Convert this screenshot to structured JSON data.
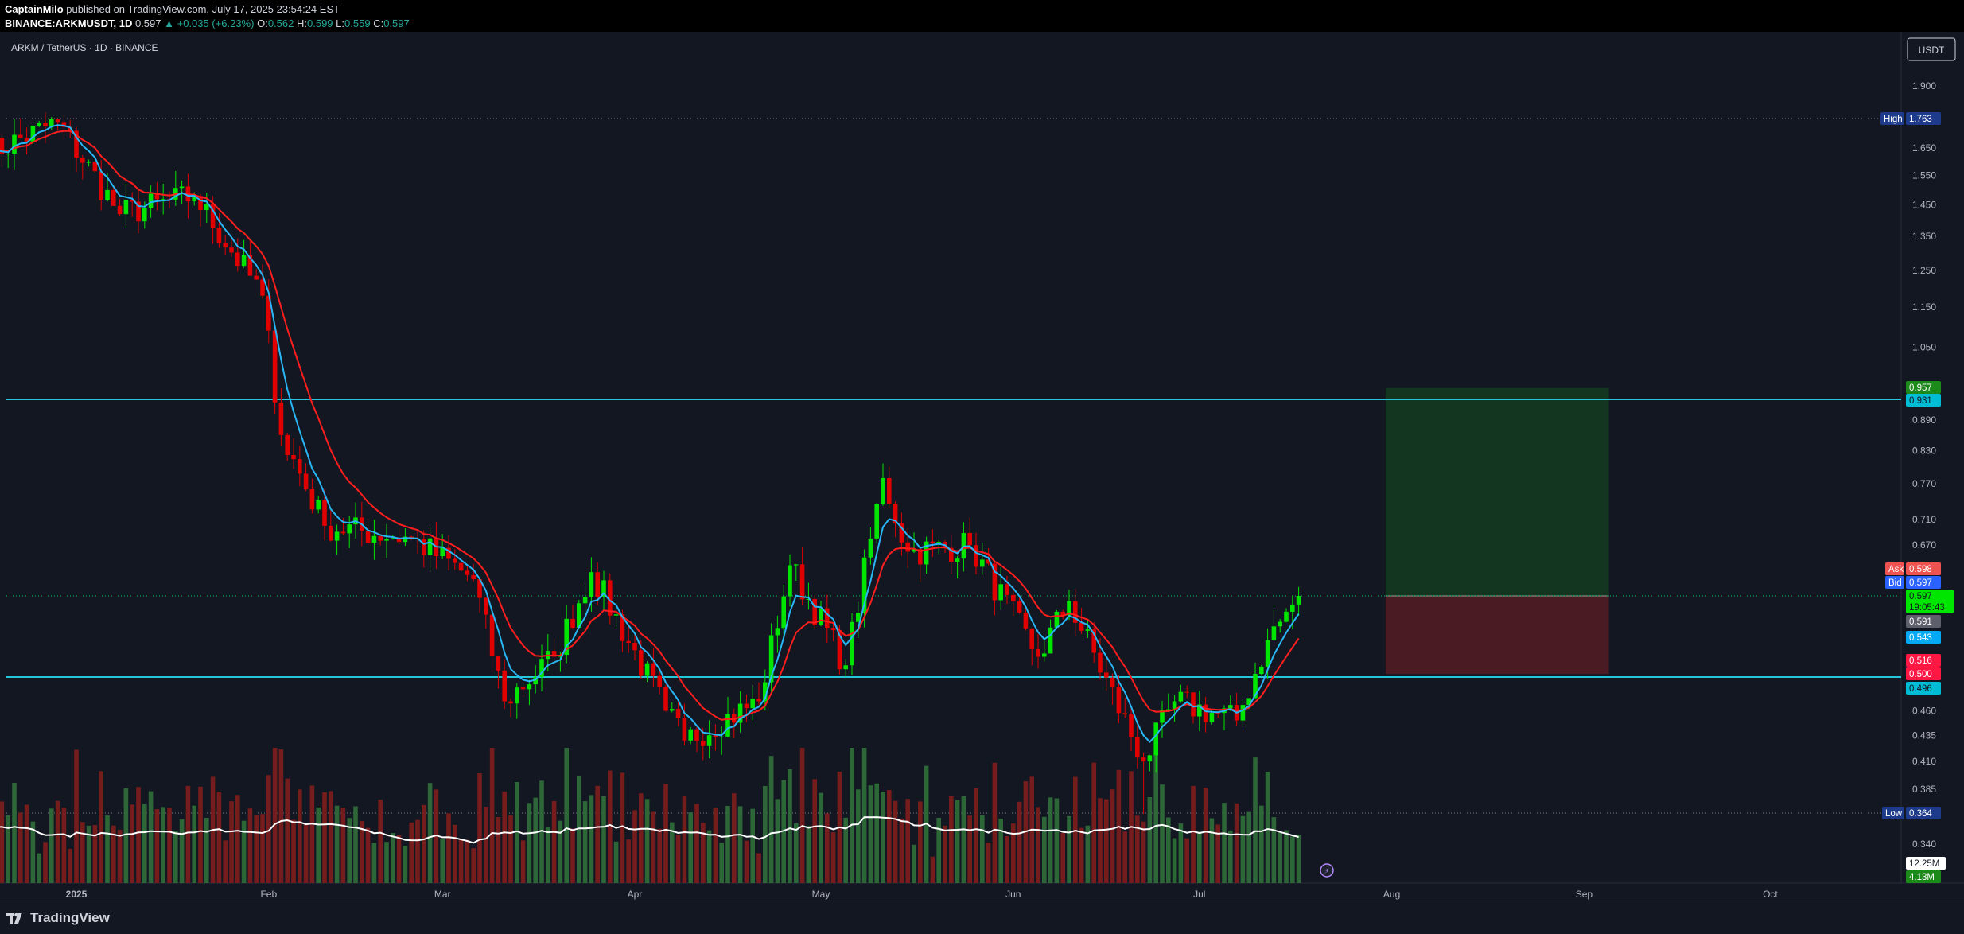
{
  "header": {
    "author": "CaptainMilo",
    "published": "published on TradingView.com, July 17, 2025 23:54:24 EST",
    "symbol": "BINANCE:ARKMUSDT, 1D",
    "last": "0.597",
    "change": "▲ +0.035 (+6.23%)",
    "o_label": "O:",
    "o": "0.562",
    "h_label": "H:",
    "h": "0.599",
    "l_label": "L:",
    "l": "0.559",
    "c_label": "C:",
    "c": "0.597"
  },
  "pair_title": "ARKM / TetherUS · 1D · BINANCE",
  "currency_button": "USDT",
  "footer_logo": "TradingView",
  "colors": {
    "background": "#131722",
    "up": "#00e600",
    "down": "#e00000",
    "ema_fast": "#29b6f6",
    "ema_slow": "#ff1e1e",
    "level_line": "#26c6da",
    "profit_zone": "#12361f",
    "loss_zone": "#4a1b22"
  },
  "y_axis_labels": [
    "1.900",
    "1.650",
    "1.550",
    "1.450",
    "1.350",
    "1.250",
    "1.150",
    "1.050",
    "0.890",
    "0.830",
    "0.770",
    "0.710",
    "0.670",
    "0.460",
    "0.435",
    "0.410",
    "0.385",
    "0.340"
  ],
  "x_axis_labels": [
    "2025",
    "Feb",
    "Mar",
    "Apr",
    "May",
    "Jun",
    "Jul",
    "Aug",
    "Sep",
    "Oct"
  ],
  "price_tags": {
    "high_label": "High",
    "high": "1.763",
    "low_label": "Low",
    "low": "0.364",
    "target": "0.957",
    "resistance": "0.931",
    "ask_label": "Ask",
    "ask": "0.598",
    "bid_label": "Bid",
    "bid": "0.597",
    "last": "0.597",
    "countdown": "19:05:43",
    "ema_fast_val": "0.591",
    "ema_blue": "0.543",
    "ema_red": "0.516",
    "stop": "0.500",
    "support": "0.496",
    "vol_ma": "12.25M",
    "volume": "4.13M"
  },
  "chart_data": {
    "type": "candlestick",
    "symbol": "ARKM / TetherUS",
    "interval": "1D",
    "exchange": "BINANCE",
    "y_scale": "log",
    "ylim": [
      0.33,
      2.0
    ],
    "x_range": [
      "2024-12-17",
      "2025-10-20"
    ],
    "key_points": [
      {
        "date": "2024-12-17",
        "close": 1.62
      },
      {
        "date": "2024-12-29",
        "close": 1.75
      },
      {
        "date": "2025-01-08",
        "close": 1.42
      },
      {
        "date": "2025-01-20",
        "close": 1.48
      },
      {
        "date": "2025-01-31",
        "close": 1.18
      },
      {
        "date": "2025-02-03",
        "close": 0.86
      },
      {
        "date": "2025-02-10",
        "close": 0.7
      },
      {
        "date": "2025-02-24",
        "close": 0.68
      },
      {
        "date": "2025-03-06",
        "close": 0.62
      },
      {
        "date": "2025-03-11",
        "close": 0.47
      },
      {
        "date": "2025-03-19",
        "close": 0.52
      },
      {
        "date": "2025-03-25",
        "close": 0.63
      },
      {
        "date": "2025-04-06",
        "close": 0.46
      },
      {
        "date": "2025-04-09",
        "close": 0.43
      },
      {
        "date": "2025-04-21",
        "close": 0.47
      },
      {
        "date": "2025-04-26",
        "close": 0.64
      },
      {
        "date": "2025-05-05",
        "close": 0.51
      },
      {
        "date": "2025-05-11",
        "close": 0.78
      },
      {
        "date": "2025-05-15",
        "close": 0.66
      },
      {
        "date": "2025-05-25",
        "close": 0.67
      },
      {
        "date": "2025-06-05",
        "close": 0.52
      },
      {
        "date": "2025-06-10",
        "close": 0.59
      },
      {
        "date": "2025-06-22",
        "close": 0.41
      },
      {
        "date": "2025-06-27",
        "close": 0.47
      },
      {
        "date": "2025-07-07",
        "close": 0.45
      },
      {
        "date": "2025-07-12",
        "close": 0.54
      },
      {
        "date": "2025-07-17",
        "close": 0.597
      }
    ],
    "high": {
      "date": "2024-12-29",
      "value": 1.763
    },
    "low": {
      "date": "2025-06-22",
      "value": 0.364
    },
    "ema_fast_end": 0.543,
    "ema_slow_end": 0.516,
    "horizontal_levels": [
      0.931,
      0.496
    ],
    "position": {
      "type": "long",
      "start": "2025-07-31",
      "end": "2025-09-05",
      "entry": 0.597,
      "target": 0.957,
      "stop": 0.5
    },
    "volume_unit": "M",
    "volume_ma_last": 12.25,
    "volume_last": 4.13
  }
}
